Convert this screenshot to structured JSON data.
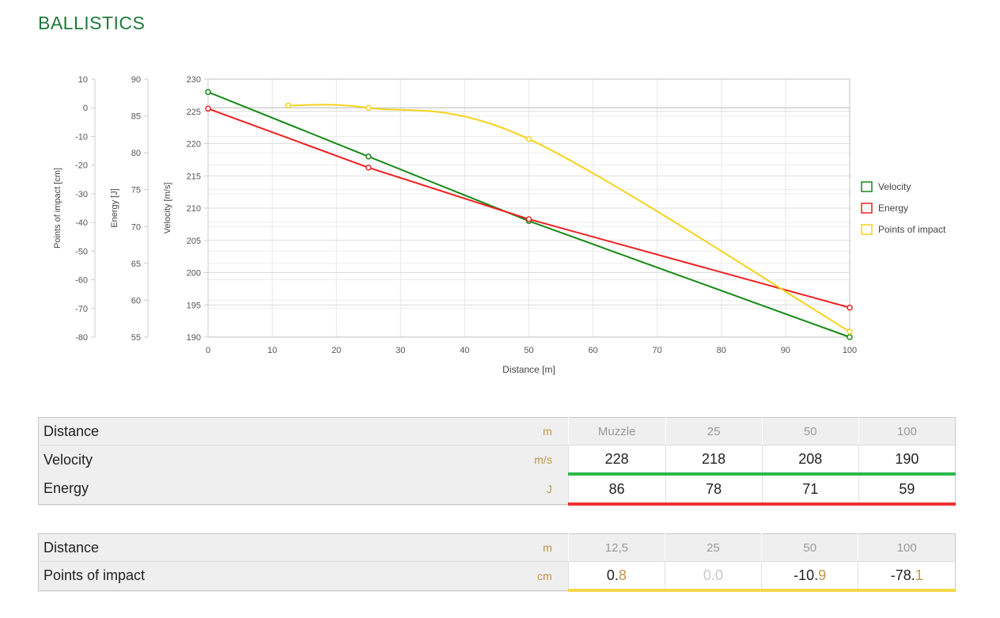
{
  "page": {
    "title": "BALLISTICS"
  },
  "chart_data": {
    "type": "line",
    "xlabel": "Distance [m]",
    "xlim": [
      0,
      100
    ],
    "x_ticks": [
      0,
      10,
      20,
      30,
      40,
      50,
      60,
      70,
      80,
      90,
      100
    ],
    "axes": [
      {
        "id": "poi",
        "label": "Points of impact [cm]",
        "lim": [
          -80,
          10
        ],
        "ticks": [
          10,
          0,
          -10,
          -20,
          -30,
          -40,
          -50,
          -60,
          -70,
          -80
        ]
      },
      {
        "id": "energy",
        "label": "Energy [J]",
        "lim": [
          55,
          90
        ],
        "ticks": [
          90,
          85,
          80,
          75,
          70,
          65,
          60,
          55
        ]
      },
      {
        "id": "velocity",
        "label": "Velocity [m/s]",
        "lim": [
          190,
          230
        ],
        "ticks": [
          230,
          225,
          220,
          215,
          210,
          205,
          200,
          195,
          190
        ]
      }
    ],
    "series": [
      {
        "name": "Velocity",
        "axis": "velocity",
        "color": "#168a16",
        "x": [
          0,
          25,
          50,
          100
        ],
        "y": [
          228,
          218,
          208,
          190
        ]
      },
      {
        "name": "Energy",
        "axis": "energy",
        "color": "#ee2020",
        "x": [
          0,
          25,
          50,
          100
        ],
        "y": [
          86,
          78,
          71,
          59
        ]
      },
      {
        "name": "Points of impact",
        "axis": "poi",
        "color": "#f5d21e",
        "x": [
          12.5,
          25,
          50,
          100
        ],
        "y": [
          0.8,
          0.0,
          -10.9,
          -78.1
        ]
      }
    ],
    "legend": "right"
  },
  "table1": {
    "header": {
      "label": "Distance",
      "unit": "m",
      "values": [
        "Muzzle",
        "25",
        "50",
        "100"
      ]
    },
    "rows": [
      {
        "label": "Velocity",
        "unit": "m/s",
        "values": [
          "228",
          "218",
          "208",
          "190"
        ]
      },
      {
        "label": "Energy",
        "unit": "J",
        "values": [
          "86",
          "78",
          "71",
          "59"
        ]
      }
    ]
  },
  "table2": {
    "header": {
      "label": "Distance",
      "unit": "m",
      "values": [
        "12,5",
        "25",
        "50",
        "100"
      ]
    },
    "row": {
      "label": "Points of impact",
      "unit": "cm",
      "values": [
        {
          "main": "0.",
          "frac": "8"
        },
        {
          "main": "0.0",
          "frac": ""
        },
        {
          "main": "-10.",
          "frac": "9"
        },
        {
          "main": "-78.",
          "frac": "1"
        }
      ]
    }
  }
}
